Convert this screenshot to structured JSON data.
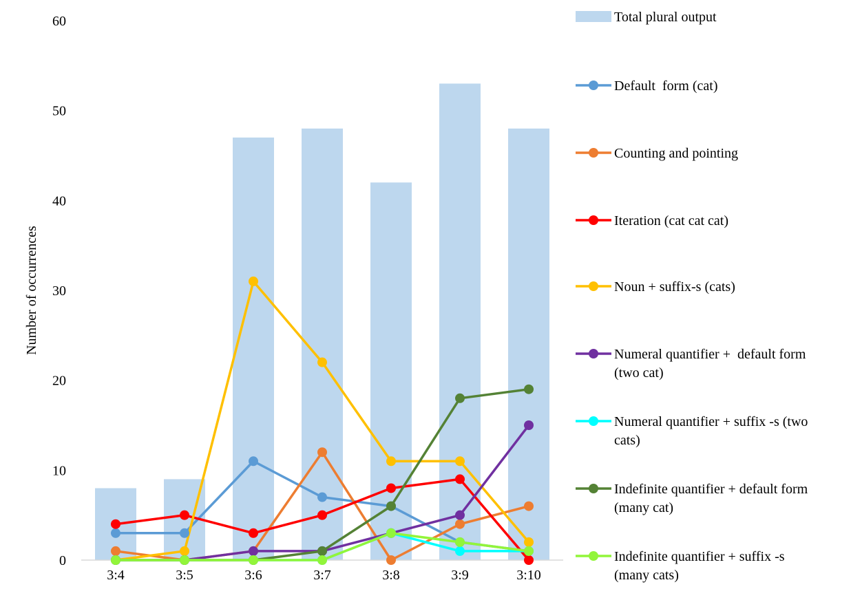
{
  "chart_data": {
    "type": "bar",
    "ylabel": "Number of occurrences",
    "xlabel": "",
    "ylim": [
      0,
      60
    ],
    "yticks": [
      0,
      10,
      20,
      30,
      40,
      50,
      60
    ],
    "grid": false,
    "legend_position": "right",
    "categories": [
      "3:4",
      "3:5",
      "3:6",
      "3:7",
      "3:8",
      "3:9",
      "3:10"
    ],
    "bar_series": {
      "name": "Total plural output",
      "color": "#bdd7ee",
      "values": [
        8,
        9,
        47,
        48,
        42,
        53,
        48
      ]
    },
    "series": [
      {
        "name": "Default  form (cat)",
        "color": "#5b9bd5",
        "values": [
          3,
          3,
          11,
          7,
          6,
          2,
          1
        ]
      },
      {
        "name": "Counting and pointing",
        "color": "#ed7d31",
        "values": [
          1,
          0,
          1,
          12,
          0,
          4,
          6
        ]
      },
      {
        "name": "Iteration (cat cat cat)",
        "color": "#ff0000",
        "values": [
          4,
          5,
          3,
          5,
          8,
          9,
          0
        ]
      },
      {
        "name": "Noun + suffix-s (cats)",
        "color": "#ffc000",
        "values": [
          0,
          1,
          31,
          22,
          11,
          11,
          2
        ]
      },
      {
        "name": "Numeral quantifier +  default form (two cat)",
        "color": "#7030a0",
        "values": [
          0,
          0,
          1,
          1,
          3,
          5,
          15
        ]
      },
      {
        "name": "Numeral quantifier + suffix -s (two cats)",
        "color": "#00ffff",
        "values": [
          0,
          0,
          0,
          0,
          3,
          1,
          1
        ]
      },
      {
        "name": "Indefinite quantifier + default form (many cat)",
        "color": "#548235",
        "values": [
          0,
          0,
          0,
          1,
          6,
          18,
          19
        ]
      },
      {
        "name": "Indefinite quantifier + suffix -s (many cats)",
        "color": "#92f53a",
        "values": [
          0,
          0,
          0,
          0,
          3,
          2,
          1
        ]
      }
    ],
    "legend_lines": [
      [
        "Total plural output"
      ],
      [
        "Default  form (cat)"
      ],
      [
        "Counting and pointing"
      ],
      [
        "Iteration (cat cat cat)"
      ],
      [
        "Noun + suffix-s (cats)"
      ],
      [
        "Numeral quantifier +  default form",
        "(two cat)"
      ],
      [
        "Numeral quantifier + suffix -s (two",
        "cats)"
      ],
      [
        "Indefinite quantifier + default form",
        "(many cat)"
      ],
      [
        "Indefinite quantifier + suffix -s",
        "(many cats)"
      ]
    ]
  }
}
